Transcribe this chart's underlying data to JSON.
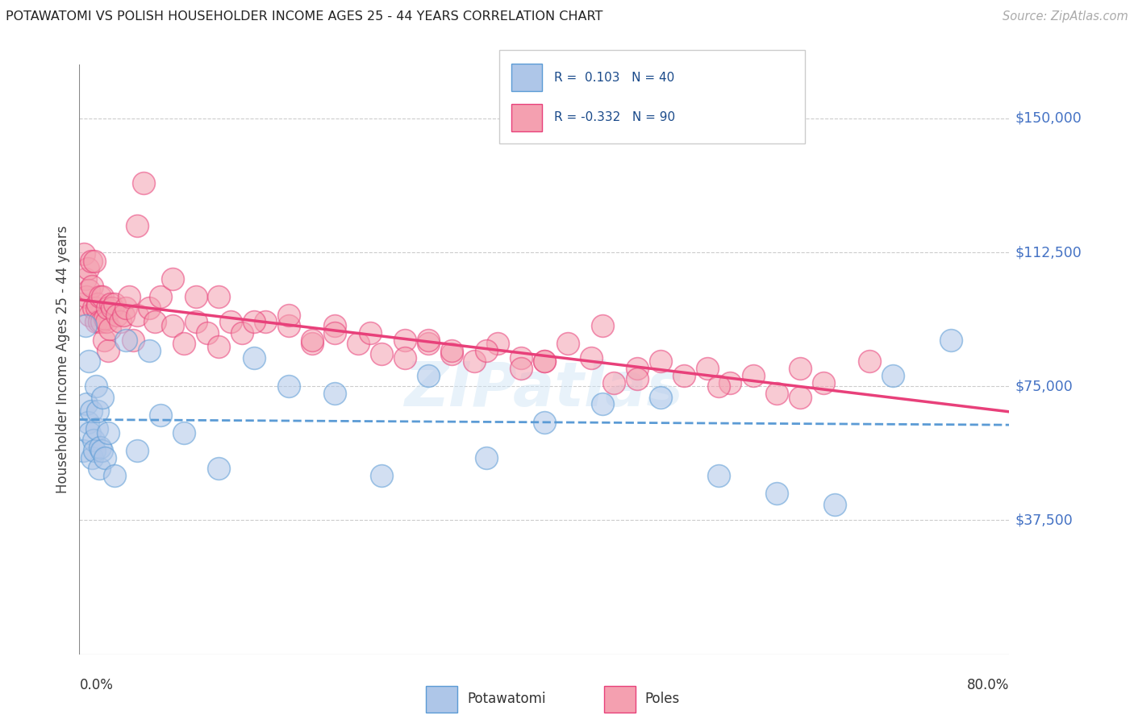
{
  "title": "POTAWATOMI VS POLISH HOUSEHOLDER INCOME AGES 25 - 44 YEARS CORRELATION CHART",
  "source": "Source: ZipAtlas.com",
  "ylabel": "Householder Income Ages 25 - 44 years",
  "ytick_vals": [
    0,
    37500,
    75000,
    112500,
    150000
  ],
  "ytick_labels": [
    "",
    "$37,500",
    "$75,000",
    "$112,500",
    "$150,000"
  ],
  "xmin": 0.0,
  "xmax": 0.8,
  "ymin": 0,
  "ymax": 165000,
  "potawatomi_color_fill": "#aec6e8",
  "potawatomi_color_edge": "#5b9bd5",
  "poles_color_fill": "#f4a0b0",
  "poles_color_edge": "#e8407a",
  "potawatomi_trend_color": "#5b9bd5",
  "poles_trend_color": "#e8407a",
  "grid_color": "#cccccc",
  "watermark": "ZIPatlas",
  "potawatomi_x": [
    0.003,
    0.005,
    0.006,
    0.007,
    0.008,
    0.009,
    0.01,
    0.011,
    0.012,
    0.013,
    0.014,
    0.015,
    0.016,
    0.017,
    0.018,
    0.019,
    0.02,
    0.022,
    0.025,
    0.03,
    0.04,
    0.05,
    0.06,
    0.07,
    0.09,
    0.12,
    0.15,
    0.18,
    0.22,
    0.26,
    0.3,
    0.35,
    0.4,
    0.45,
    0.5,
    0.55,
    0.6,
    0.65,
    0.7,
    0.75
  ],
  "potawatomi_y": [
    57000,
    92000,
    70000,
    65000,
    82000,
    62000,
    68000,
    55000,
    60000,
    57000,
    75000,
    63000,
    68000,
    52000,
    58000,
    57000,
    72000,
    55000,
    62000,
    50000,
    88000,
    57000,
    85000,
    67000,
    62000,
    52000,
    83000,
    75000,
    73000,
    50000,
    78000,
    55000,
    65000,
    70000,
    72000,
    50000,
    45000,
    42000,
    78000,
    88000
  ],
  "poles_x": [
    0.002,
    0.004,
    0.005,
    0.006,
    0.007,
    0.008,
    0.009,
    0.01,
    0.011,
    0.012,
    0.013,
    0.014,
    0.015,
    0.016,
    0.017,
    0.018,
    0.019,
    0.02,
    0.021,
    0.022,
    0.023,
    0.024,
    0.025,
    0.026,
    0.027,
    0.028,
    0.03,
    0.032,
    0.035,
    0.038,
    0.04,
    0.043,
    0.046,
    0.05,
    0.055,
    0.06,
    0.065,
    0.07,
    0.08,
    0.09,
    0.1,
    0.11,
    0.12,
    0.13,
    0.14,
    0.16,
    0.18,
    0.2,
    0.22,
    0.24,
    0.26,
    0.28,
    0.3,
    0.32,
    0.34,
    0.36,
    0.38,
    0.4,
    0.42,
    0.44,
    0.46,
    0.48,
    0.5,
    0.52,
    0.54,
    0.56,
    0.58,
    0.6,
    0.62,
    0.64,
    0.25,
    0.3,
    0.35,
    0.4,
    0.45,
    0.1,
    0.15,
    0.2,
    0.28,
    0.38,
    0.05,
    0.08,
    0.12,
    0.18,
    0.22,
    0.32,
    0.48,
    0.55,
    0.62,
    0.68
  ],
  "poles_y": [
    98000,
    112000,
    105000,
    100000,
    108000,
    102000,
    95000,
    110000,
    103000,
    97000,
    110000,
    93000,
    97000,
    98000,
    93000,
    100000,
    93000,
    100000,
    88000,
    94000,
    93000,
    97000,
    85000,
    91000,
    98000,
    97000,
    98000,
    95000,
    93000,
    95000,
    97000,
    100000,
    88000,
    95000,
    132000,
    97000,
    93000,
    100000,
    92000,
    87000,
    93000,
    90000,
    86000,
    93000,
    90000,
    93000,
    92000,
    87000,
    92000,
    87000,
    84000,
    88000,
    87000,
    84000,
    82000,
    87000,
    83000,
    82000,
    87000,
    83000,
    76000,
    80000,
    82000,
    78000,
    80000,
    76000,
    78000,
    73000,
    80000,
    76000,
    90000,
    88000,
    85000,
    82000,
    92000,
    100000,
    93000,
    88000,
    83000,
    80000,
    120000,
    105000,
    100000,
    95000,
    90000,
    85000,
    77000,
    75000,
    72000,
    82000
  ]
}
